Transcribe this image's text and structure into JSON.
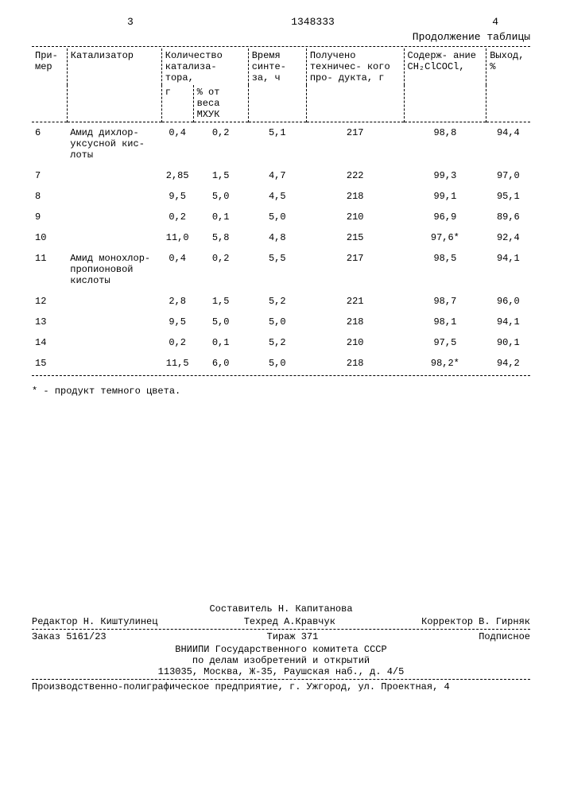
{
  "header": {
    "page_left": "3",
    "doc_number": "1348333",
    "page_right": "4",
    "continuation": "Продолжение таблицы"
  },
  "table": {
    "headers": {
      "col1": "При-\nмер",
      "col2": "Катализатор",
      "col3": "Количество\nкатализа-\nтора,",
      "col3a": "г",
      "col3b": "% от\nвеса\nМХУК",
      "col4": "Время\nсинте-\nза, ч",
      "col5": "Получено\nтехничес-\nкого про-\nдукта, г",
      "col6": "Содерж-\nание\nCH₂ClCOCl,",
      "col7": "Выход,\n%"
    },
    "rows": [
      {
        "n": "6",
        "cat": "Амид дихлор-\nуксусной кис-\nлоты",
        "g": "0,4",
        "pct": "0,2",
        "t": "5,1",
        "prod": "217",
        "cont": "98,8",
        "yield": "94,4"
      },
      {
        "n": "7",
        "cat": "",
        "g": "2,85",
        "pct": "1,5",
        "t": "4,7",
        "prod": "222",
        "cont": "99,3",
        "yield": "97,0"
      },
      {
        "n": "8",
        "cat": "",
        "g": "9,5",
        "pct": "5,0",
        "t": "4,5",
        "prod": "218",
        "cont": "99,1",
        "yield": "95,1"
      },
      {
        "n": "9",
        "cat": "",
        "g": "0,2",
        "pct": "0,1",
        "t": "5,0",
        "prod": "210",
        "cont": "96,9",
        "yield": "89,6"
      },
      {
        "n": "10",
        "cat": "",
        "g": "11,0",
        "pct": "5,8",
        "t": "4,8",
        "prod": "215",
        "cont": "97,6*",
        "yield": "92,4"
      },
      {
        "n": "11",
        "cat": "Амид монохлор-\nпропионовой\nкислоты",
        "g": "0,4",
        "pct": "0,2",
        "t": "5,5",
        "prod": "217",
        "cont": "98,5",
        "yield": "94,1"
      },
      {
        "n": "12",
        "cat": "",
        "g": "2,8",
        "pct": "1,5",
        "t": "5,2",
        "prod": "221",
        "cont": "98,7",
        "yield": "96,0"
      },
      {
        "n": "13",
        "cat": "",
        "g": "9,5",
        "pct": "5,0",
        "t": "5,0",
        "prod": "218",
        "cont": "98,1",
        "yield": "94,1"
      },
      {
        "n": "14",
        "cat": "",
        "g": "0,2",
        "pct": "0,1",
        "t": "5,2",
        "prod": "210",
        "cont": "97,5",
        "yield": "90,1"
      },
      {
        "n": "15",
        "cat": "",
        "g": "11,5",
        "pct": "6,0",
        "t": "5,0",
        "prod": "218",
        "cont": "98,2*",
        "yield": "94,2"
      }
    ]
  },
  "footnote": "* - продукт темного цвета.",
  "bottom": {
    "compiler": "Составитель Н. Капитанова",
    "editor": "Редактор Н. Киштулинец",
    "techred": "Техред А.Кравчук",
    "corrector": "Корректор В. Гирняк",
    "order": "Заказ 5161/23",
    "tirazh": "Тираж 371",
    "subscription": "Подписное",
    "org1": "ВНИИПИ Государственного комитета СССР",
    "org2": "по делам изобретений и открытий",
    "addr1": "113035, Москва, Ж-35, Раушская наб., д. 4/5",
    "addr2": "Производственно-полиграфическое предприятие, г. Ужгород, ул. Проектная, 4"
  }
}
